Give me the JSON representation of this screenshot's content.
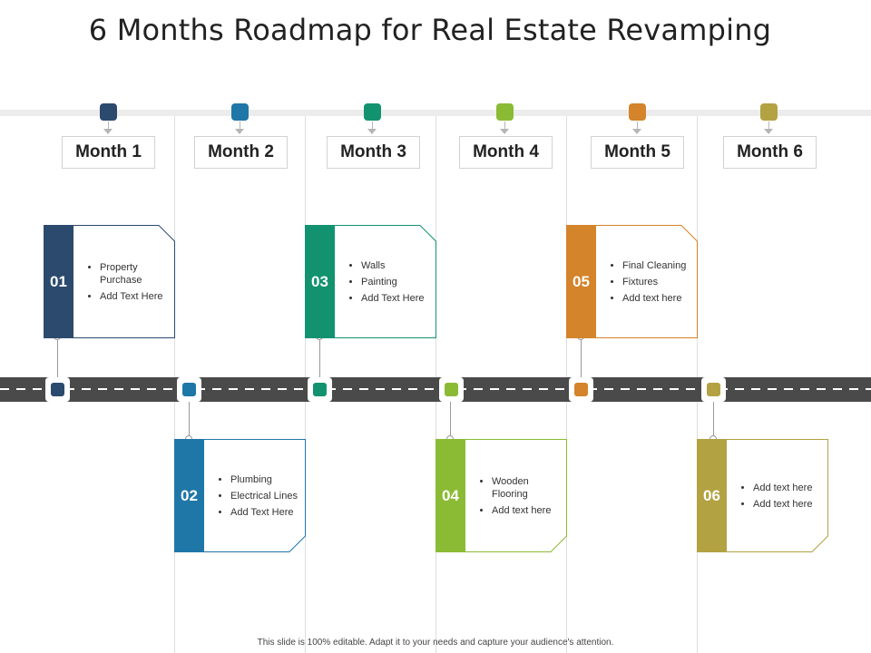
{
  "title": "6 Months Roadmap for Real Estate Revamping",
  "months": [
    {
      "label": "Month 1",
      "color": "#2c4a6e"
    },
    {
      "label": "Month 2",
      "color": "#1f77a8"
    },
    {
      "label": "Month 3",
      "color": "#139270"
    },
    {
      "label": "Month 4",
      "color": "#8bbb35"
    },
    {
      "label": "Month 5",
      "color": "#d4842a"
    },
    {
      "label": "Month 6",
      "color": "#b3a242"
    }
  ],
  "cards": [
    {
      "number": "01",
      "items": [
        "Property Purchase",
        "Add Text Here"
      ]
    },
    {
      "number": "02",
      "items": [
        "Plumbing",
        "Electrical Lines",
        "Add Text Here"
      ]
    },
    {
      "number": "03",
      "items": [
        "Walls",
        "Painting",
        "Add Text Here"
      ]
    },
    {
      "number": "04",
      "items": [
        "Wooden Flooring",
        "Add text here"
      ]
    },
    {
      "number": "05",
      "items": [
        "Final Cleaning",
        "Fixtures",
        "Add text here"
      ]
    },
    {
      "number": "06",
      "items": [
        "Add text here",
        "Add text here"
      ]
    }
  ],
  "footer": "This slide is 100% editable. Adapt it to your needs and capture your audience's attention."
}
